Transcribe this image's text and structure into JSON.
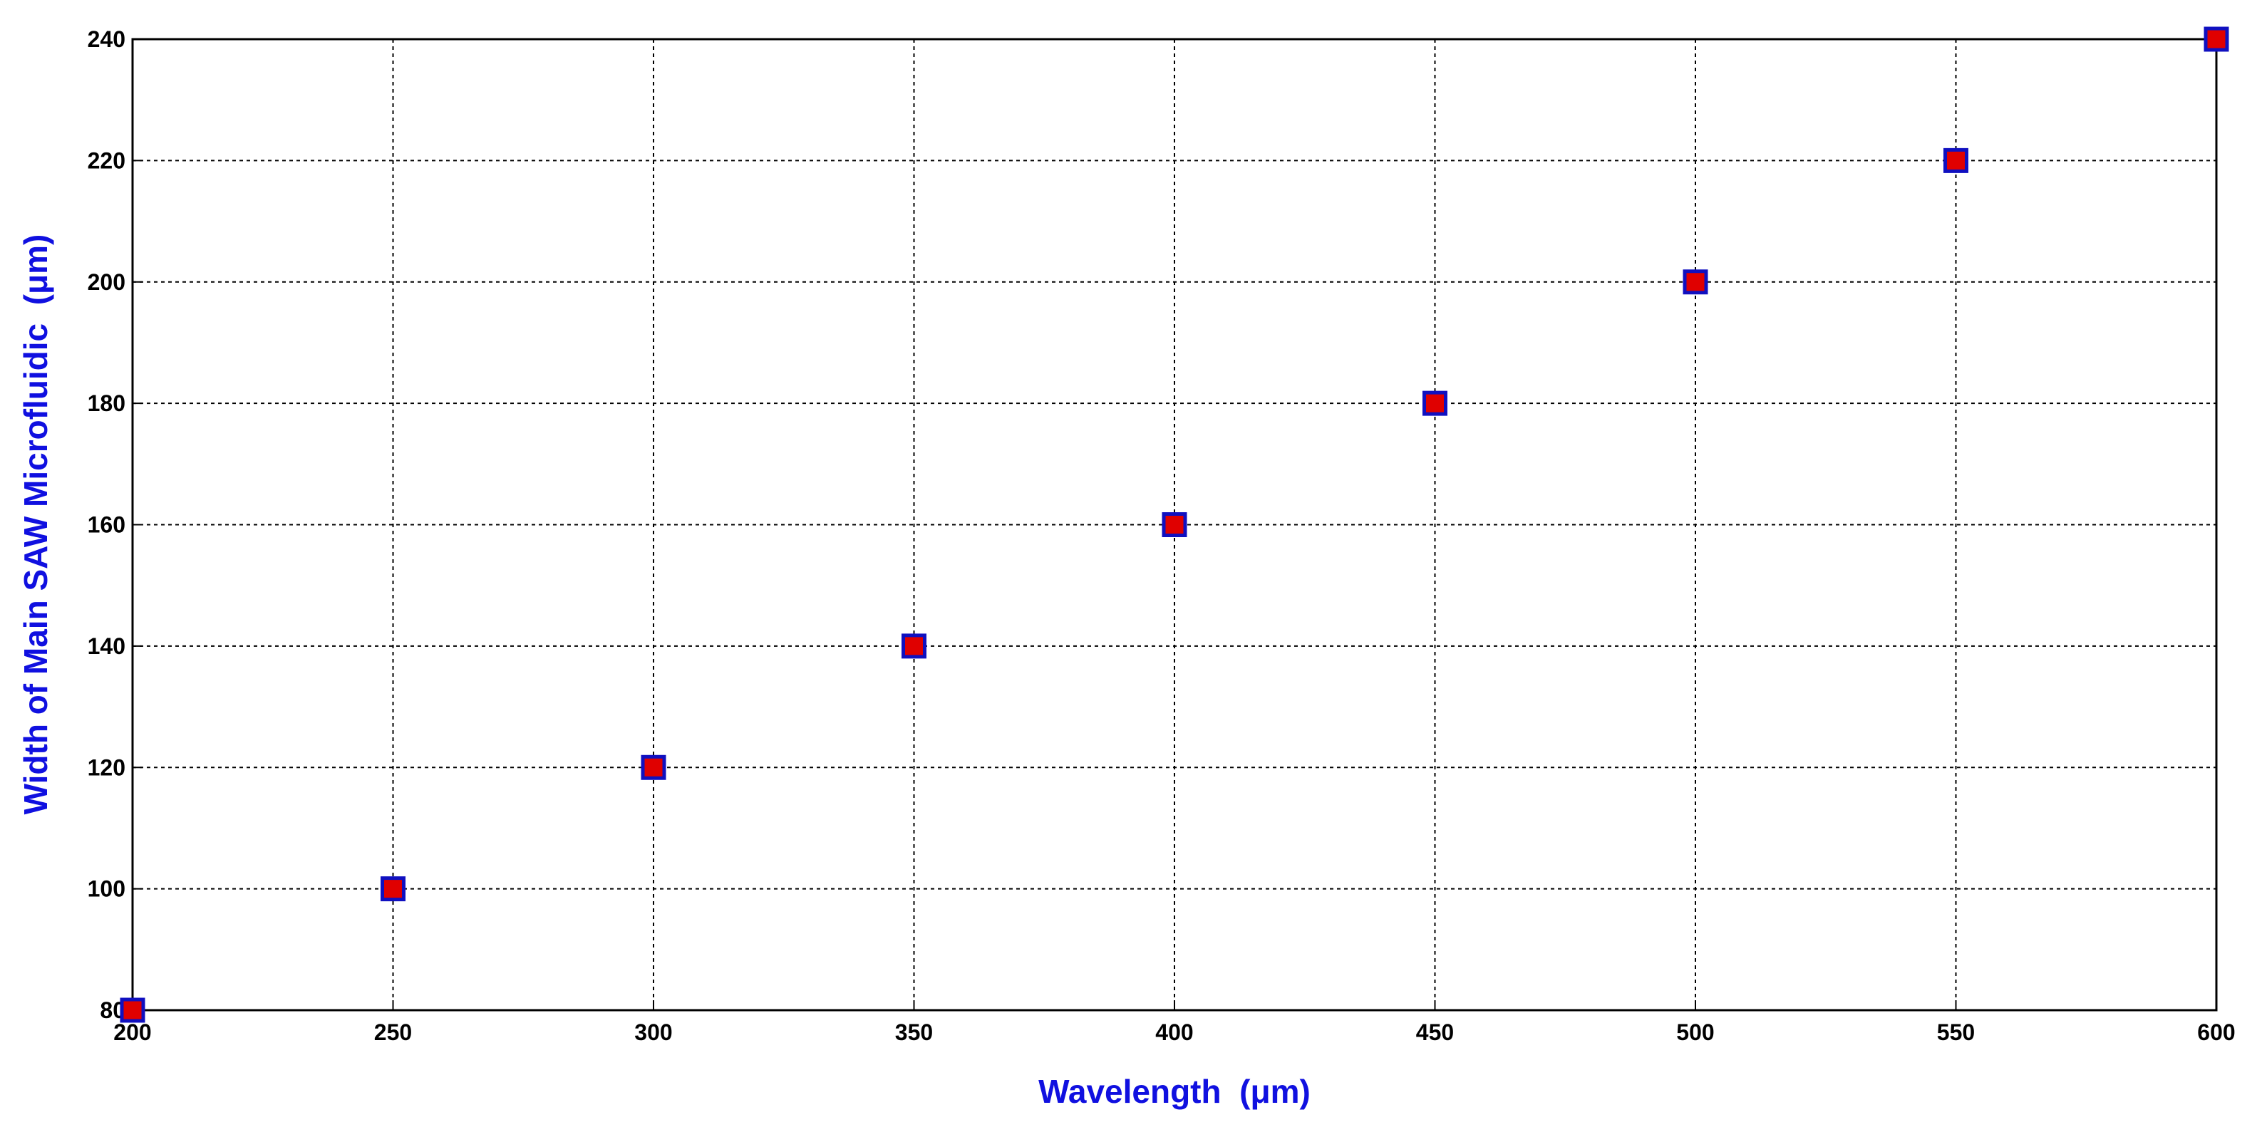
{
  "chart_data": {
    "type": "scatter",
    "xlabel": "Wavelength  (μm)",
    "ylabel": "Width of Main SAW Microfluidic  (μm)",
    "x": [
      200,
      250,
      300,
      350,
      400,
      450,
      500,
      550,
      600
    ],
    "series": [
      {
        "color": "#e00000",
        "edgecolor": "#1010c0",
        "values": [
          80,
          100,
          120,
          140,
          160,
          180,
          200,
          220,
          240
        ]
      }
    ],
    "xlim": [
      200,
      600
    ],
    "ylim": [
      80,
      240
    ],
    "xticks": [
      200,
      250,
      300,
      350,
      400,
      450,
      500,
      550,
      600
    ],
    "yticks": [
      80,
      100,
      120,
      140,
      160,
      180,
      200,
      220,
      240
    ],
    "grid": true,
    "label_color": "#1010e0"
  }
}
